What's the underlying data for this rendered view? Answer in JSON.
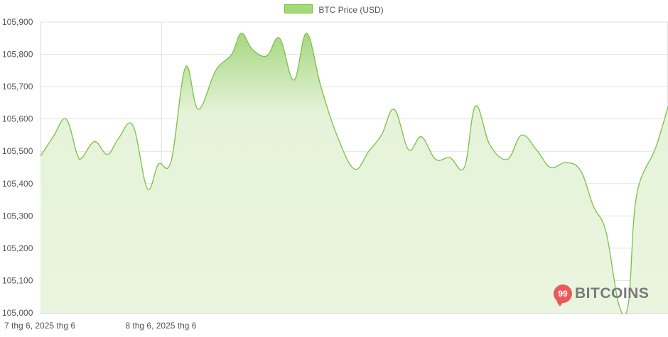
{
  "chart_data": {
    "type": "area",
    "title": "",
    "xlabel": "",
    "ylabel": "",
    "legend": {
      "position": "top-center",
      "label": "BTC Price (USD)"
    },
    "grid": true,
    "ylim": [
      105000,
      105900
    ],
    "yticks": [
      105000,
      105100,
      105200,
      105300,
      105400,
      105500,
      105600,
      105700,
      105800,
      105900
    ],
    "ytick_labels": [
      "105,000",
      "105,100",
      "105,200",
      "105,300",
      "105,400",
      "105,500",
      "105,600",
      "105,700",
      "105,800",
      "105,900"
    ],
    "xlim_hours": [
      0,
      38
    ],
    "xtick_labels": [
      {
        "label": "7 thg 6, 2025 thg 6",
        "hour": 0
      },
      {
        "label": "8 thg 6, 2025 thg 6",
        "hour": 7.6
      }
    ],
    "series": [
      {
        "name": "BTC Price (USD)",
        "color": "#7ac143",
        "fill": "#e5f3d9",
        "points": [
          [
            0.0,
            105485
          ],
          [
            0.8,
            105545
          ],
          [
            1.6,
            105600
          ],
          [
            2.3,
            105490
          ],
          [
            2.6,
            105480
          ],
          [
            3.4,
            105530
          ],
          [
            4.2,
            105490
          ],
          [
            4.9,
            105540
          ],
          [
            5.8,
            105580
          ],
          [
            6.7,
            105385
          ],
          [
            7.4,
            105460
          ],
          [
            8.2,
            105470
          ],
          [
            9.1,
            105760
          ],
          [
            9.9,
            105630
          ],
          [
            11.0,
            105750
          ],
          [
            12.0,
            105800
          ],
          [
            12.6,
            105865
          ],
          [
            13.3,
            105815
          ],
          [
            14.2,
            105795
          ],
          [
            15.0,
            105850
          ],
          [
            15.9,
            105720
          ],
          [
            16.7,
            105865
          ],
          [
            17.6,
            105700
          ],
          [
            18.6,
            105550
          ],
          [
            19.7,
            105445
          ],
          [
            20.6,
            105500
          ],
          [
            21.4,
            105550
          ],
          [
            22.2,
            105630
          ],
          [
            23.1,
            105505
          ],
          [
            23.9,
            105545
          ],
          [
            24.8,
            105475
          ],
          [
            25.7,
            105480
          ],
          [
            26.6,
            105450
          ],
          [
            27.3,
            105640
          ],
          [
            28.2,
            105520
          ],
          [
            29.3,
            105475
          ],
          [
            30.2,
            105550
          ],
          [
            31.2,
            105500
          ],
          [
            32.0,
            105450
          ],
          [
            33.0,
            105465
          ],
          [
            33.9,
            105440
          ],
          [
            34.7,
            105330
          ],
          [
            35.5,
            105250
          ],
          [
            36.3,
            105025
          ],
          [
            36.9,
            105030
          ],
          [
            37.4,
            105360
          ],
          [
            38.6,
            105510
          ],
          [
            39.4,
            105640
          ],
          [
            39.9,
            105725
          ]
        ]
      }
    ]
  },
  "watermark": {
    "badge": "99",
    "word": "BITCOINS"
  }
}
